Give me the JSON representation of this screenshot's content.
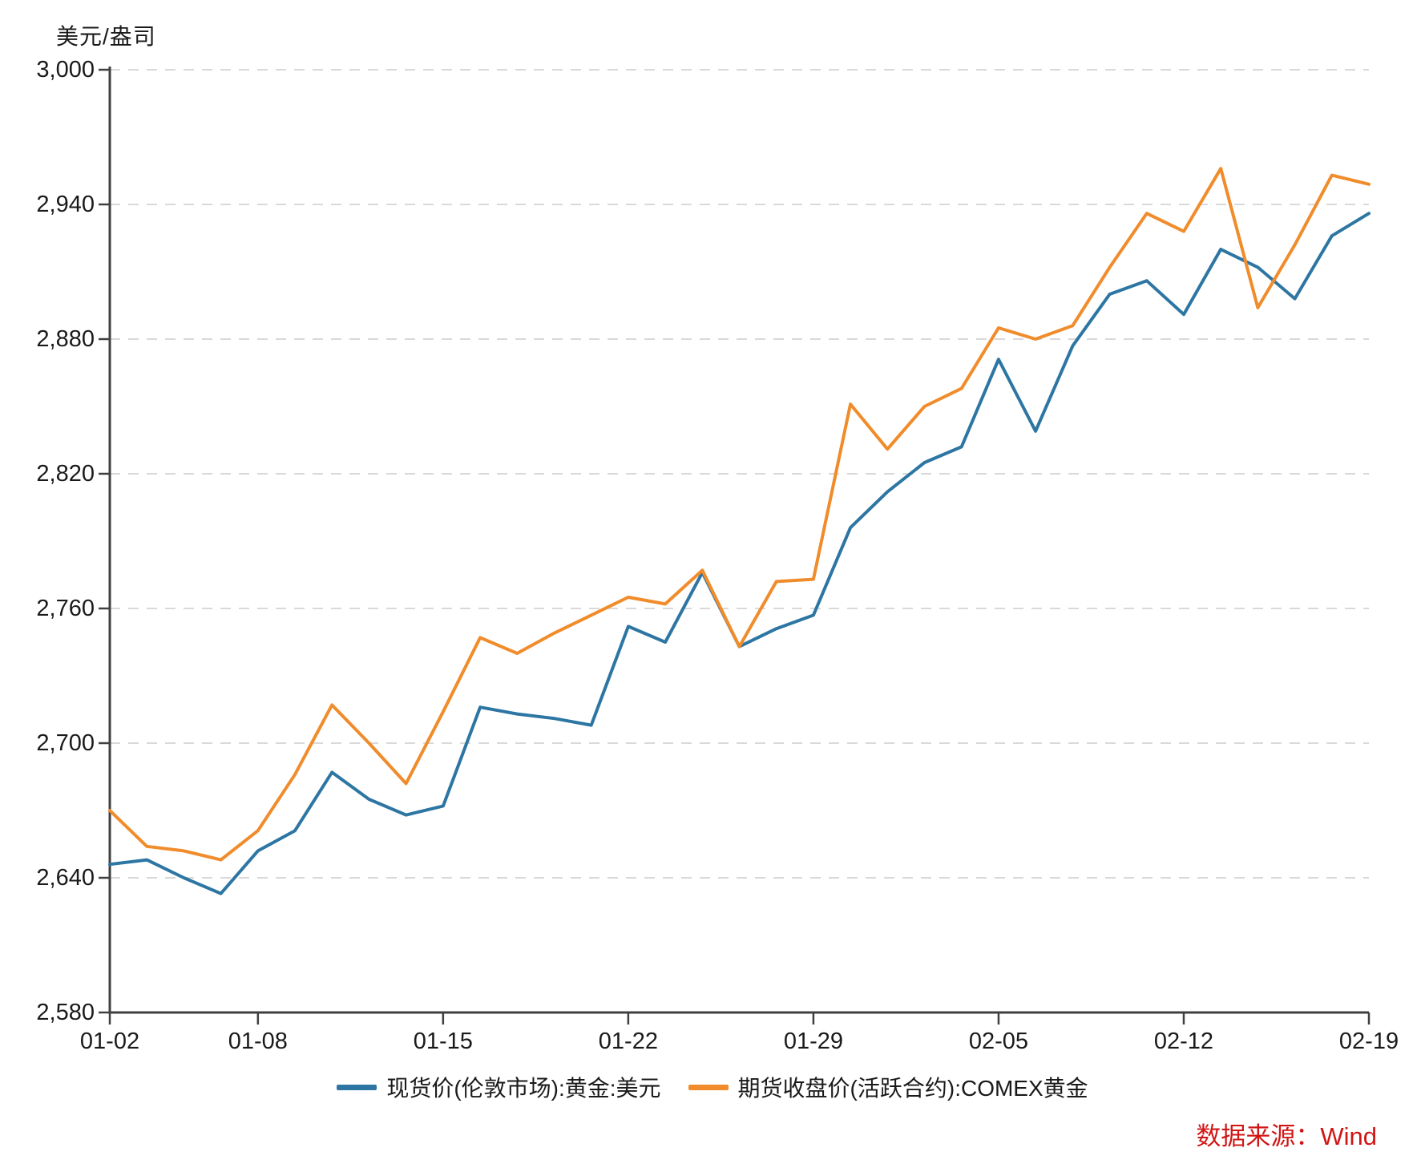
{
  "y_axis_title": "美元/盎司",
  "source_note": "数据来源：Wind",
  "colors": {
    "spot_line": "#2d76a3",
    "futures_line": "#f08c2b",
    "axis": "#404040",
    "grid": "#d9d9d9",
    "tick_text": "#1a1a1a",
    "source_text": "#d01515",
    "background": "#ffffff"
  },
  "legend": [
    {
      "label": "现货价(伦敦市场):黄金:美元",
      "color": "#2d76a3"
    },
    {
      "label": "期货收盘价(活跃合约):COMEX黄金",
      "color": "#f08c2b"
    }
  ],
  "chart_data": {
    "type": "line",
    "title": "",
    "xlabel": "",
    "ylabel": "美元/盎司",
    "ylim": [
      2580,
      3000
    ],
    "y_ticks": [
      2580,
      2640,
      2700,
      2760,
      2820,
      2880,
      2940,
      3000
    ],
    "y_tick_labels": [
      "2,580",
      "2,640",
      "2,700",
      "2,760",
      "2,820",
      "2,880",
      "2,940",
      "3,000"
    ],
    "grid": "horizontal-dashed",
    "legend_position": "bottom",
    "x": [
      "01-02",
      "01-03",
      "01-06",
      "01-07",
      "01-08",
      "01-09",
      "01-10",
      "01-13",
      "01-14",
      "01-15",
      "01-16",
      "01-17",
      "01-20",
      "01-21",
      "01-22",
      "01-23",
      "01-24",
      "01-27",
      "01-28",
      "01-29",
      "01-30",
      "01-31",
      "02-03",
      "02-04",
      "02-05",
      "02-06",
      "02-07",
      "02-10",
      "02-11",
      "02-12",
      "02-13",
      "02-14",
      "02-17",
      "02-18",
      "02-19"
    ],
    "x_tick_labels": [
      "01-02",
      "01-08",
      "01-15",
      "01-22",
      "01-29",
      "02-05",
      "02-12",
      "02-19"
    ],
    "x_tick_indices": [
      0,
      4,
      9,
      14,
      19,
      24,
      29,
      34
    ],
    "series": [
      {
        "name": "现货价(伦敦市场):黄金:美元",
        "color": "#2d76a3",
        "values": [
          2646,
          2648,
          2640,
          2633,
          2652,
          2661,
          2687,
          2675,
          2668,
          2672,
          2716,
          2713,
          2711,
          2708,
          2752,
          2745,
          2776,
          2743,
          2751,
          2757,
          2796,
          2812,
          2825,
          2832,
          2871,
          2839,
          2877,
          2900,
          2906,
          2891,
          2920,
          2912,
          2898,
          2926,
          2936
        ]
      },
      {
        "name": "期货收盘价(活跃合约):COMEX黄金",
        "color": "#f08c2b",
        "values": [
          2670,
          2654,
          2652,
          2648,
          2661,
          2686,
          2717,
          2700,
          2682,
          2714,
          2747,
          2740,
          2749,
          2757,
          2765,
          2762,
          2777,
          2743,
          2772,
          2773,
          2851,
          2831,
          2850,
          2858,
          2885,
          2880,
          2886,
          2912,
          2936,
          2928,
          2956,
          2894,
          2922,
          2953,
          2949
        ]
      }
    ]
  }
}
